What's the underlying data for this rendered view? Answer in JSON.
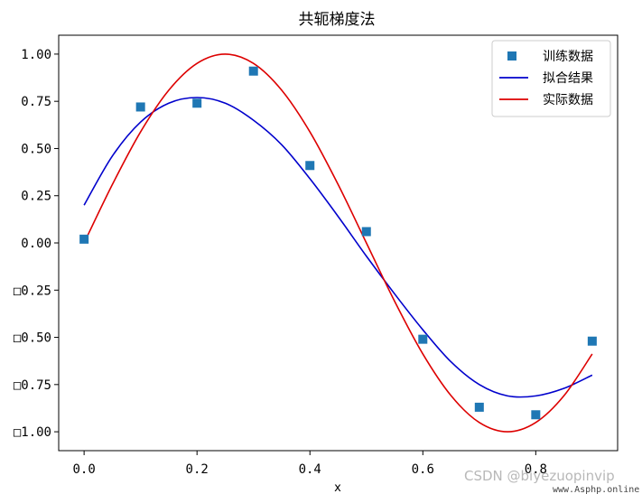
{
  "chart_data": {
    "type": "line",
    "title": "共轭梯度法",
    "xlabel": "x",
    "ylabel": "",
    "xlim": [
      -0.045,
      0.945
    ],
    "ylim": [
      -1.1,
      1.1
    ],
    "xticks": [
      {
        "value": 0.0,
        "label": "0.0"
      },
      {
        "value": 0.2,
        "label": "0.2"
      },
      {
        "value": 0.4,
        "label": "0.4"
      },
      {
        "value": 0.6,
        "label": "0.6"
      },
      {
        "value": 0.8,
        "label": "0.8"
      }
    ],
    "yticks": [
      {
        "value": 1.0,
        "label": "1.00"
      },
      {
        "value": 0.75,
        "label": "0.75"
      },
      {
        "value": 0.5,
        "label": "0.50"
      },
      {
        "value": 0.25,
        "label": "0.25"
      },
      {
        "value": 0.0,
        "label": "0.00"
      },
      {
        "value": -0.25,
        "label": "□0.25"
      },
      {
        "value": -0.5,
        "label": "□0.50"
      },
      {
        "value": -0.75,
        "label": "□0.75"
      },
      {
        "value": -1.0,
        "label": "□1.00"
      }
    ],
    "grid": false,
    "legend_position": "top-right",
    "series": [
      {
        "name": "训练数据",
        "kind": "scatter",
        "marker": "square",
        "color": "#1f77b4",
        "x": [
          0.0,
          0.1,
          0.2,
          0.3,
          0.4,
          0.5,
          0.6,
          0.7,
          0.8,
          0.9
        ],
        "y": [
          0.02,
          0.72,
          0.74,
          0.91,
          0.41,
          0.06,
          -0.51,
          -0.87,
          -0.91,
          -0.52
        ]
      },
      {
        "name": "拟合结果",
        "kind": "line",
        "color": "#0000cc",
        "x": [
          0.0,
          0.05,
          0.1,
          0.15,
          0.2,
          0.25,
          0.3,
          0.35,
          0.4,
          0.45,
          0.5,
          0.55,
          0.6,
          0.65,
          0.7,
          0.75,
          0.8,
          0.85,
          0.9
        ],
        "y": [
          0.2,
          0.46,
          0.64,
          0.74,
          0.77,
          0.74,
          0.65,
          0.52,
          0.34,
          0.14,
          -0.07,
          -0.27,
          -0.46,
          -0.63,
          -0.75,
          -0.81,
          -0.81,
          -0.77,
          -0.7
        ]
      },
      {
        "name": "实际数据",
        "kind": "line",
        "color": "#dd0000",
        "x": [
          0.0,
          0.05,
          0.1,
          0.15,
          0.2,
          0.25,
          0.3,
          0.35,
          0.4,
          0.45,
          0.5,
          0.55,
          0.6,
          0.65,
          0.7,
          0.75,
          0.8,
          0.85,
          0.9
        ],
        "y": [
          0.0,
          0.309,
          0.588,
          0.809,
          0.951,
          1.0,
          0.951,
          0.809,
          0.588,
          0.309,
          0.0,
          -0.309,
          -0.588,
          -0.809,
          -0.951,
          -1.0,
          -0.951,
          -0.809,
          -0.588
        ]
      }
    ]
  },
  "watermark": {
    "main": "CSDN @biyezuopinvip",
    "sub": "www.Asphp.online"
  }
}
